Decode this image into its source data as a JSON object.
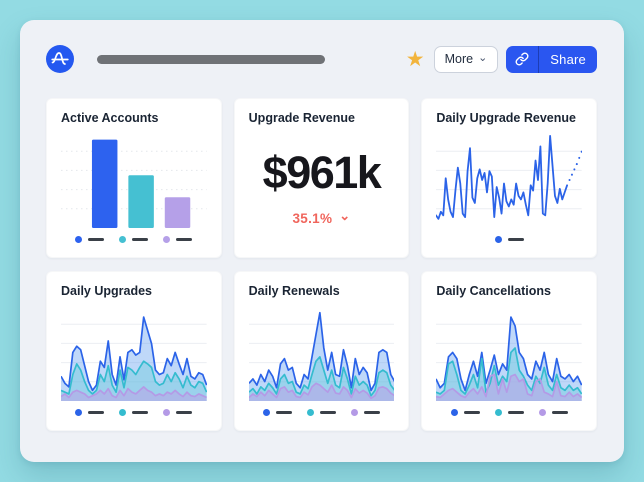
{
  "colors": {
    "page_background": "#93DBE3",
    "panel_background": "#EEF1F6",
    "card_background": "#FFFFFF",
    "brand_blue": "#2A56F0",
    "series_blue": "#2B63E8",
    "series_teal": "#45C0D2",
    "series_purple": "#B5A0E8",
    "delta_red": "#F0655C",
    "star_gold": "#F2B43C",
    "legend_dash": "#3A4048"
  },
  "header": {
    "logo": "amplitude-logo",
    "star_icon": "favorite-star",
    "more_label": "More",
    "more_caret": "⌄",
    "share_icon": "link",
    "share_label": "Share"
  },
  "cards": [
    {
      "title": "Active Accounts",
      "chart": {
        "type": "bar",
        "grid": {
          "count": 4,
          "style": "dotted",
          "color": "#E4E7EB"
        },
        "values": [
          92,
          55,
          32
        ],
        "colors": [
          "#2D62EF",
          "#45C0D2",
          "#B5A0E8"
        ],
        "legend": [
          "#2D62EF",
          "#45C0D2",
          "#B5A0E8"
        ]
      }
    },
    {
      "title": "Upgrade Revenue",
      "metric": {
        "value": "$961k",
        "delta": "35.1%",
        "delta_direction": "down",
        "delta_caret": "⌄"
      }
    },
    {
      "title": "Daily Upgrade Revenue",
      "chart": {
        "type": "line",
        "grid": {
          "count": 4,
          "style": "solid",
          "color": "#ECEEF2"
        },
        "color": "#2B63E8",
        "values": [
          10,
          6,
          14,
          10,
          52,
          28,
          14,
          8,
          38,
          64,
          46,
          12,
          8,
          60,
          86,
          30,
          24,
          52,
          62,
          50,
          58,
          36,
          60,
          54,
          8,
          42,
          30,
          12,
          46,
          26,
          20,
          28,
          22,
          46,
          32,
          28,
          36,
          22,
          10,
          44,
          38,
          72,
          50,
          88,
          12,
          10,
          46,
          100,
          66,
          32,
          24,
          40,
          28,
          36,
          44
        ],
        "forecast": [
          50,
          56,
          62,
          68,
          75,
          82
        ],
        "legend": [
          "#2B63E8"
        ]
      }
    },
    {
      "title": "Daily Upgrades",
      "chart": {
        "type": "area",
        "grid": {
          "count": 4,
          "style": "solid",
          "color": "#ECEEF2"
        },
        "series": [
          {
            "name": "blue",
            "color": "#2B63E8",
            "fill": "rgba(96,158,240,0.40)",
            "values": [
              28,
              20,
              16,
              55,
              62,
              58,
              40,
              22,
              12,
              18,
              45,
              38,
              68,
              30,
              18,
              50,
              24,
              55,
              58,
              52,
              55,
              95,
              80,
              65,
              35,
              30,
              32,
              48,
              40,
              55,
              42,
              30,
              48,
              28,
              25,
              32,
              30,
              18
            ]
          },
          {
            "name": "teal",
            "color": "#35BCCF",
            "fill": "rgba(110,205,220,0.45)",
            "values": [
              12,
              10,
              8,
              30,
              42,
              35,
              22,
              12,
              8,
              12,
              30,
              22,
              40,
              18,
              10,
              35,
              15,
              38,
              35,
              30,
              38,
              45,
              42,
              38,
              22,
              18,
              20,
              30,
              22,
              32,
              25,
              15,
              28,
              18,
              15,
              22,
              20,
              10
            ]
          },
          {
            "name": "purple",
            "color": "#B49AE6",
            "fill": "rgba(185,163,232,0.55)",
            "values": [
              5,
              8,
              4,
              10,
              12,
              10,
              8,
              4,
              6,
              8,
              12,
              8,
              14,
              6,
              4,
              12,
              6,
              14,
              10,
              8,
              12,
              16,
              12,
              10,
              6,
              8,
              6,
              10,
              8,
              12,
              8,
              5,
              10,
              6,
              5,
              8,
              6,
              4
            ]
          }
        ],
        "legend": [
          "#2B63E8",
          "#35BCCF",
          "#B49AE6"
        ]
      }
    },
    {
      "title": "Daily Renewals",
      "chart": {
        "type": "area",
        "grid": {
          "count": 4,
          "style": "solid",
          "color": "#ECEEF2"
        },
        "series": [
          {
            "name": "blue",
            "color": "#2B63E8",
            "fill": "rgba(96,158,240,0.40)",
            "values": [
              20,
              25,
              18,
              30,
              22,
              35,
              28,
              15,
              42,
              48,
              35,
              38,
              20,
              15,
              30,
              25,
              50,
              75,
              100,
              60,
              35,
              55,
              30,
              28,
              58,
              40,
              15,
              48,
              30,
              38,
              32,
              12,
              20,
              55,
              58,
              55,
              30,
              22
            ]
          },
          {
            "name": "teal",
            "color": "#35BCCF",
            "fill": "rgba(110,205,220,0.45)",
            "values": [
              10,
              14,
              8,
              16,
              12,
              20,
              15,
              8,
              25,
              30,
              20,
              22,
              10,
              8,
              18,
              14,
              30,
              45,
              50,
              35,
              20,
              35,
              18,
              15,
              38,
              25,
              8,
              28,
              18,
              22,
              18,
              6,
              12,
              32,
              35,
              32,
              18,
              12
            ]
          },
          {
            "name": "purple",
            "color": "#B49AE6",
            "fill": "rgba(185,163,232,0.55)",
            "values": [
              4,
              8,
              5,
              10,
              6,
              12,
              8,
              4,
              14,
              16,
              10,
              12,
              5,
              4,
              10,
              7,
              16,
              20,
              18,
              14,
              10,
              18,
              9,
              8,
              16,
              12,
              4,
              14,
              9,
              12,
              9,
              3,
              6,
              15,
              16,
              14,
              9,
              6
            ]
          }
        ],
        "legend": [
          "#2B63E8",
          "#35BCCF",
          "#B49AE6"
        ]
      }
    },
    {
      "title": "Daily Cancellations",
      "chart": {
        "type": "area",
        "grid": {
          "count": 4,
          "style": "solid",
          "color": "#ECEEF2"
        },
        "series": [
          {
            "name": "blue",
            "color": "#2B63E8",
            "fill": "rgba(96,158,240,0.40)",
            "values": [
              25,
              15,
              20,
              50,
              55,
              48,
              25,
              12,
              30,
              45,
              28,
              55,
              20,
              35,
              52,
              30,
              42,
              35,
              95,
              85,
              55,
              48,
              30,
              25,
              45,
              35,
              55,
              30,
              22,
              48,
              28,
              25,
              30,
              22,
              28,
              18
            ]
          },
          {
            "name": "teal",
            "color": "#35BCCF",
            "fill": "rgba(110,205,220,0.45)",
            "values": [
              10,
              8,
              12,
              42,
              45,
              30,
              12,
              8,
              18,
              30,
              15,
              48,
              10,
              20,
              40,
              18,
              28,
              22,
              55,
              60,
              35,
              28,
              18,
              12,
              28,
              20,
              38,
              18,
              12,
              30,
              15,
              12,
              18,
              12,
              15,
              8
            ]
          },
          {
            "name": "purple",
            "color": "#B49AE6",
            "fill": "rgba(185,163,232,0.55)",
            "values": [
              5,
              4,
              8,
              12,
              14,
              10,
              6,
              4,
              10,
              14,
              8,
              16,
              5,
              28,
              30,
              8,
              25,
              10,
              28,
              30,
              22,
              25,
              8,
              6,
              22,
              25,
              10,
              8,
              5,
              22,
              6,
              5,
              10,
              5,
              8,
              4
            ]
          }
        ],
        "legend": [
          "#2B63E8",
          "#35BCCF",
          "#B49AE6"
        ]
      }
    }
  ]
}
